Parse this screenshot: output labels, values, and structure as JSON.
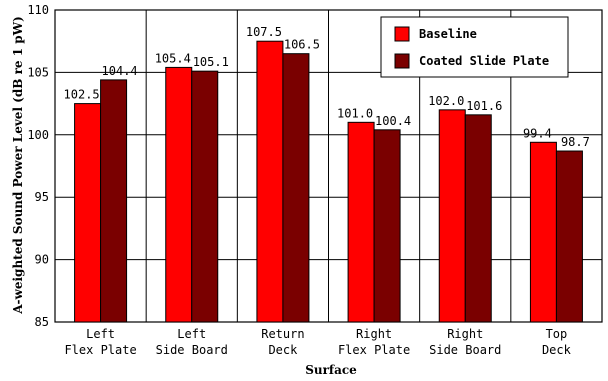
{
  "chart_data": {
    "type": "bar",
    "title": "",
    "xlabel": "Surface",
    "ylabel": "A-weighted Sound Power Level (dB re 1 pW)",
    "ylim": [
      85,
      110
    ],
    "yticks": [
      "85",
      "90",
      "95",
      "100",
      "105",
      "110"
    ],
    "grid": true,
    "legend_position": "top-right",
    "categories": [
      [
        "Left",
        "Flex Plate"
      ],
      [
        "Left",
        "Side Board"
      ],
      [
        "Return",
        "Deck"
      ],
      [
        "Right",
        "Flex Plate"
      ],
      [
        "Right",
        "Side Board"
      ],
      [
        "Top",
        "Deck"
      ]
    ],
    "series": [
      {
        "name": "Baseline",
        "color": "#ff0000",
        "values": [
          102.5,
          105.4,
          107.5,
          101.0,
          102.0,
          99.4
        ],
        "labels": [
          "102.5",
          "105.4",
          "107.5",
          "101.0",
          "102.0",
          "99.4"
        ]
      },
      {
        "name": "Coated Slide Plate",
        "color": "#7a0000",
        "values": [
          104.4,
          105.1,
          106.5,
          100.4,
          101.6,
          98.7
        ],
        "labels": [
          "104.4",
          "105.1",
          "106.5",
          "100.4",
          "101.6",
          "98.7"
        ]
      }
    ]
  }
}
